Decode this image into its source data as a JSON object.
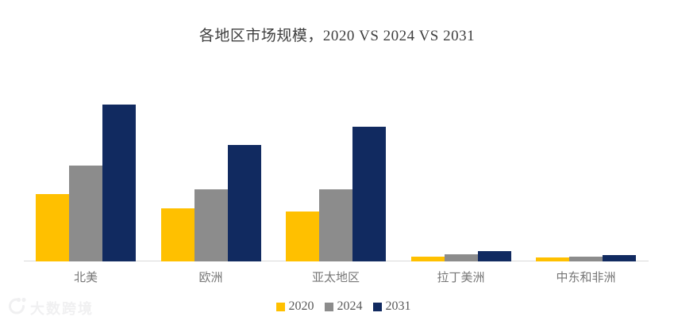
{
  "chart_data": {
    "type": "bar",
    "title": "各地区市场规模，2020 VS 2024 VS 2031",
    "categories": [
      "北美",
      "欧洲",
      "亚太地区",
      "拉丁美洲",
      "中东和非洲"
    ],
    "series": [
      {
        "name": "2020",
        "color": "#FFC000",
        "values": [
          43,
          34,
          32,
          3,
          2.5
        ]
      },
      {
        "name": "2024",
        "color": "#8C8C8C",
        "values": [
          61,
          46,
          46,
          4.5,
          3
        ]
      },
      {
        "name": "2031",
        "color": "#112A60",
        "values": [
          100,
          74,
          86,
          6.5,
          4
        ]
      }
    ],
    "ylim": [
      0,
      100
    ],
    "y_axis_visible": false,
    "grid": false,
    "legend_position": "bottom",
    "note_units": "relative heights, no value axis shown"
  },
  "watermark": {
    "text": "大数跨境"
  }
}
